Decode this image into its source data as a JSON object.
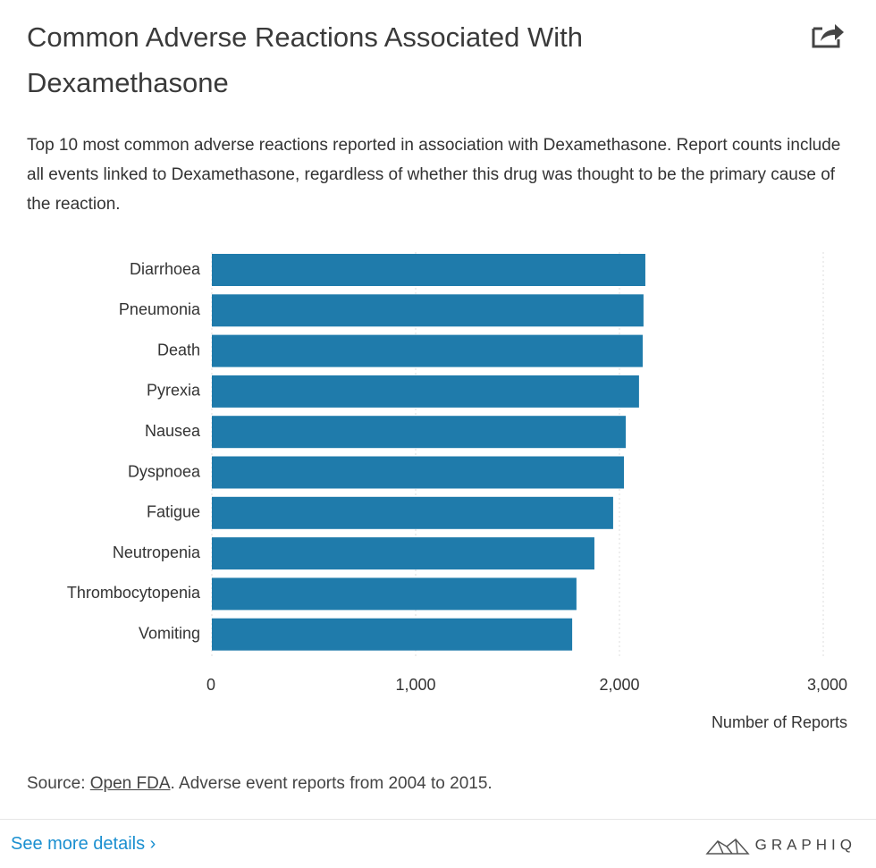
{
  "title": "Common Adverse Reactions Associated With Dexamethasone",
  "subtitle": "Top 10 most common adverse reactions reported in association with Dexamethasone. Report counts include all events linked to Dexamethasone, regardless of whether this drug was thought to be the primary cause of the reaction.",
  "chart_data": {
    "type": "hbar",
    "categories": [
      "Diarrhoea",
      "Pneumonia",
      "Death",
      "Pyrexia",
      "Nausea",
      "Dyspnoea",
      "Fatigue",
      "Neutropenia",
      "Thrombocytopenia",
      "Vomiting"
    ],
    "values": [
      2127,
      2118,
      2114,
      2096,
      2031,
      2022,
      1969,
      1877,
      1789,
      1768
    ],
    "color": "#1f7bab",
    "xlabel": "Number of Reports",
    "xlim": [
      0,
      3000
    ],
    "xticks": [
      0,
      {
        "value": 1000,
        "label": "1,000"
      },
      {
        "value": 2000,
        "label": "2,000"
      },
      {
        "value": 3000,
        "label": "3,000"
      }
    ],
    "grid": true
  },
  "source": {
    "prefix": "Source:",
    "link": "Open FDA",
    "text": ". Adverse event reports from 2004 to 2015."
  },
  "footer": {
    "link": "See more details ›",
    "brand": "GRAPHIQ"
  }
}
